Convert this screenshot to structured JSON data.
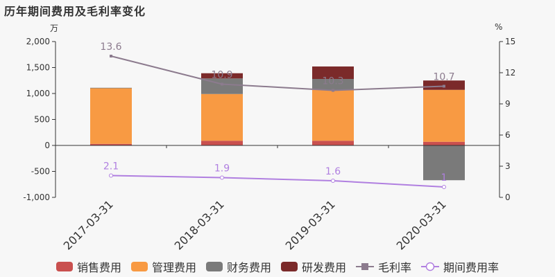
{
  "header": {
    "title": "历年期间费用及毛利率变化",
    "unit_left": "万",
    "unit_right": "%"
  },
  "legend": {
    "items": [
      {
        "label": "销售费用",
        "color": "#c9504f",
        "kind": "bar"
      },
      {
        "label": "管理费用",
        "color": "#f89a43",
        "kind": "bar"
      },
      {
        "label": "财务费用",
        "color": "#7a7a7a",
        "kind": "bar"
      },
      {
        "label": "研发费用",
        "color": "#7b2a2a",
        "kind": "bar"
      },
      {
        "label": "毛利率",
        "color": "#8c7b8e",
        "kind": "line-square"
      },
      {
        "label": "期间费用率",
        "color": "#b07fe0",
        "kind": "line-circle"
      }
    ]
  },
  "chart_data": {
    "type": "bar",
    "categories": [
      "2017-03-31",
      "2018-03-31",
      "2019-03-31",
      "2020-03-31"
    ],
    "stacked": true,
    "left_axis": {
      "ylim": [
        -1000,
        2000
      ],
      "ticks": [
        -1000,
        -500,
        0,
        500,
        1000,
        1500,
        2000
      ],
      "tick_labels": [
        "-1,000",
        "-500",
        "0",
        "500",
        "1,000",
        "1,500",
        "2,000"
      ]
    },
    "right_axis": {
      "ylim": [
        0,
        15
      ],
      "ticks": [
        0,
        3,
        6,
        9,
        12,
        15
      ],
      "tick_labels": [
        "0",
        "3",
        "6",
        "9",
        "12",
        "15"
      ]
    },
    "series": [
      {
        "name": "销售费用",
        "type": "bar",
        "color": "#c9504f",
        "values": [
          30,
          90,
          90,
          70
        ]
      },
      {
        "name": "管理费用",
        "type": "bar",
        "color": "#f89a43",
        "values": [
          1070,
          900,
          980,
          1000
        ]
      },
      {
        "name": "财务费用",
        "type": "bar",
        "color": "#7a7a7a",
        "values": [
          10,
          300,
          210,
          -670
        ]
      },
      {
        "name": "研发费用",
        "type": "bar",
        "color": "#7b2a2a",
        "values": [
          0,
          100,
          240,
          180
        ]
      },
      {
        "name": "毛利率",
        "type": "line",
        "axis": "right",
        "color": "#8c7b8e",
        "values": [
          13.6,
          10.9,
          10.3,
          10.7
        ],
        "labels": [
          "13.6",
          "10.9",
          "10.3",
          "10.7"
        ]
      },
      {
        "name": "期间费用率",
        "type": "line",
        "axis": "right",
        "color": "#b07fe0",
        "values": [
          2.1,
          1.9,
          1.6,
          1
        ],
        "labels": [
          "2.1",
          "1.9",
          "1.6",
          "1"
        ]
      }
    ],
    "grid": false,
    "legend_position": "bottom"
  }
}
